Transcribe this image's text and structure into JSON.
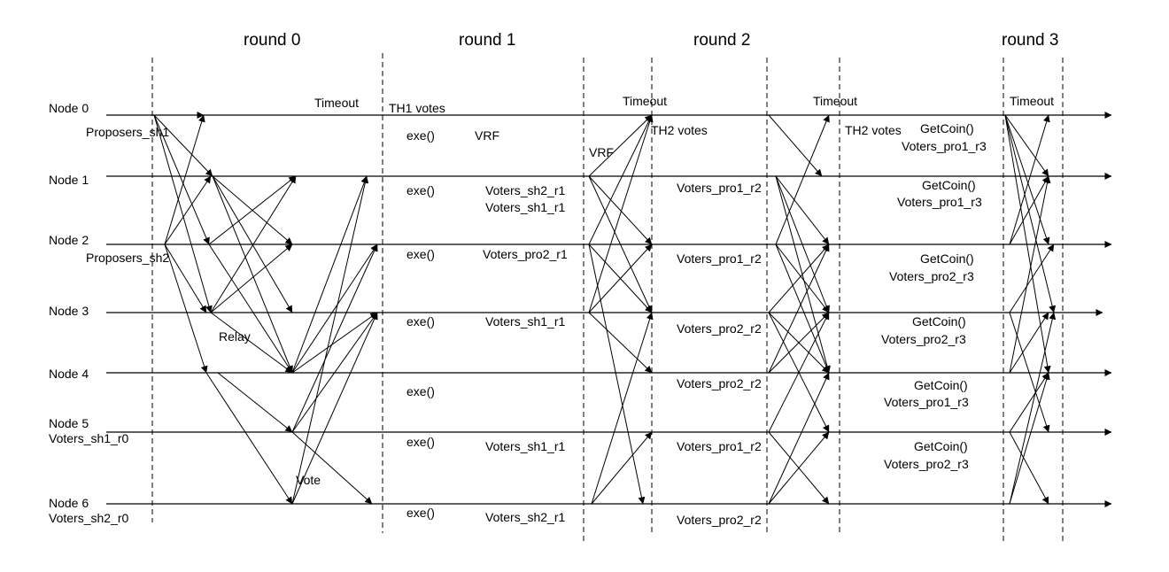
{
  "rounds": [
    "round 0",
    "round 1",
    "round 2",
    "round 3"
  ],
  "nodes": [
    "Node 0",
    "Node 1",
    "Node 2",
    "Node 3",
    "Node 4",
    "Node 5",
    "Node 6"
  ],
  "labels": {
    "proposers_sh1": "Proposers_sh1",
    "proposers_sh2": "Proposers_sh2",
    "relay": "Relay",
    "vote": "Vote",
    "voters_sh1_r0": "Voters_sh1_r0",
    "voters_sh2_r0": "Voters_sh2_r0",
    "timeout_r0": "Timeout",
    "th1_votes": "TH1 votes",
    "exe": "exe()",
    "vrf_1": "VRF",
    "vrf_2": "VRF",
    "timeout_r1": "Timeout",
    "th2_votes_1": "TH2 votes",
    "timeout_r2": "Timeout",
    "th2_votes_2": "TH2 votes",
    "timeout_r3": "Timeout",
    "r1_node1_a": "Voters_sh2_r1",
    "r1_node1_b": "Voters_sh1_r1",
    "r1_node2": "Voters_pro2_r1",
    "r1_node3": "Voters_sh1_r1",
    "r1_node5": "Voters_sh1_r1",
    "r1_node6": "Voters_sh2_r1",
    "r2_node1": "Voters_pro1_r2",
    "r2_node2": "Voters_pro1_r2",
    "r2_node3": "Voters_pro2_r2",
    "r2_node4": "Voters_pro2_r2",
    "r2_node5": "Voters_pro1_r2",
    "r2_node6": "Voters_pro2_r2",
    "getcoin": "GetCoin()",
    "r3_node0": "Voters_pro1_r3",
    "r3_node1": "Voters_pro1_r3",
    "r3_node2": "Voters_pro2_r3",
    "r3_node3": "Voters_pro2_r3",
    "r3_node4": "Voters_pro1_r3",
    "r3_node5": "Voters_pro2_r3"
  }
}
